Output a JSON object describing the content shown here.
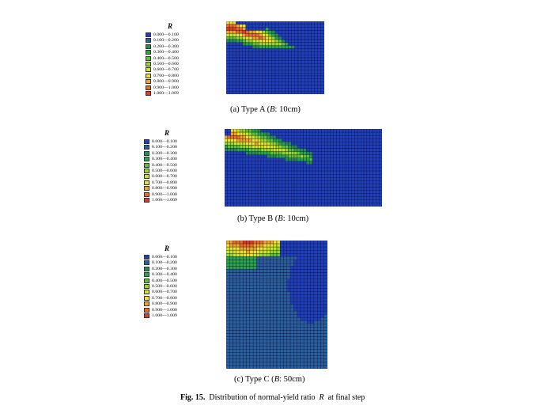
{
  "legend": {
    "title": "R",
    "ranges": [
      "0.000—0.100",
      "0.100—0.200",
      "0.200—0.300",
      "0.300—0.400",
      "0.400—0.500",
      "0.500—0.600",
      "0.600—0.700",
      "0.700—0.800",
      "0.800—0.900",
      "0.900—1.000",
      "1.000—1.009"
    ],
    "colors": [
      "#1f3fbf",
      "#2a5fa0",
      "#2a8a56",
      "#2aa64a",
      "#5cc236",
      "#96d92a",
      "#cde41f",
      "#f0e02a",
      "#f5a22a",
      "#ee6a22",
      "#e23a1e"
    ]
  },
  "panels": [
    {
      "caption_prefix": "(a) Type A (",
      "caption_var": "B",
      "caption_suffix": ": 10cm)"
    },
    {
      "caption_prefix": "(b) Type B (",
      "caption_var": "B",
      "caption_suffix": ": 10cm)"
    },
    {
      "caption_prefix": "(c) Type C (",
      "caption_var": "B",
      "caption_suffix": ": 50cm)"
    }
  ],
  "figure_caption": {
    "label": "Fig. 15.",
    "text": "Distribution of normal-yield ratio",
    "var": "R",
    "suffix": "at final step"
  }
}
